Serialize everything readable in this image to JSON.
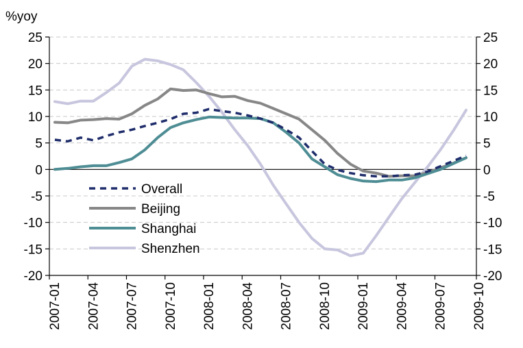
{
  "chart_data": {
    "type": "line",
    "ylabel": "%yoy",
    "ylim": [
      -20,
      25
    ],
    "yticks": [
      -20,
      -15,
      -10,
      -5,
      0,
      5,
      10,
      15,
      20,
      25
    ],
    "y_axis_right": true,
    "grid": "horizontal dashed",
    "legend_position": "lower-left inside",
    "x_tick_labels": [
      "2007-01",
      "2007-04",
      "2007-07",
      "2007-10",
      "2008-01",
      "2008-04",
      "2008-07",
      "2008-10",
      "2009-01",
      "2009-04",
      "2009-07",
      "2009-10"
    ],
    "x": [
      "2007-01",
      "2007-02",
      "2007-03",
      "2007-04",
      "2007-05",
      "2007-06",
      "2007-07",
      "2007-08",
      "2007-09",
      "2007-10",
      "2007-11",
      "2007-12",
      "2008-01",
      "2008-02",
      "2008-03",
      "2008-04",
      "2008-05",
      "2008-06",
      "2008-07",
      "2008-08",
      "2008-09",
      "2008-10",
      "2008-11",
      "2008-12",
      "2009-01",
      "2009-02",
      "2009-03",
      "2009-04",
      "2009-05",
      "2009-06",
      "2009-07",
      "2009-08",
      "2009-09"
    ],
    "series": [
      {
        "name": "Overall",
        "color": "#1f2d6b",
        "dash": "dashed",
        "values": [
          5.6,
          5.3,
          6.0,
          5.5,
          6.3,
          7.0,
          7.5,
          8.2,
          8.8,
          9.5,
          10.5,
          10.7,
          11.4,
          11.0,
          10.7,
          10.2,
          9.6,
          8.8,
          7.5,
          6.0,
          3.5,
          1.0,
          -0.1,
          -0.7,
          -1.1,
          -1.3,
          -1.3,
          -1.1,
          -1.0,
          -0.4,
          0.6,
          1.6,
          2.6
        ]
      },
      {
        "name": "Beijing",
        "color": "#878787",
        "dash": "solid",
        "values": [
          8.9,
          8.8,
          9.3,
          9.4,
          9.6,
          9.5,
          10.5,
          12.1,
          13.3,
          15.2,
          14.9,
          15.0,
          14.3,
          13.7,
          13.8,
          13.0,
          12.5,
          11.5,
          10.5,
          9.5,
          7.5,
          5.5,
          3.0,
          1.0,
          -0.3,
          -0.7,
          -1.3,
          -1.2,
          -1.2,
          -0.6,
          0.3,
          1.2,
          2.2
        ]
      },
      {
        "name": "Shanghai",
        "color": "#4e8d94",
        "dash": "solid",
        "values": [
          0.0,
          0.2,
          0.5,
          0.7,
          0.7,
          1.3,
          2.0,
          3.7,
          6.0,
          7.9,
          8.8,
          9.4,
          9.9,
          9.8,
          9.7,
          9.7,
          9.6,
          8.8,
          7.0,
          5.0,
          2.0,
          0.5,
          -1.0,
          -1.7,
          -2.2,
          -2.3,
          -2.0,
          -2.0,
          -1.6,
          -0.8,
          0.0,
          1.1,
          2.2
        ]
      },
      {
        "name": "Shenzhen",
        "color": "#c7c6de",
        "dash": "solid",
        "values": [
          12.8,
          12.4,
          12.9,
          12.9,
          14.5,
          16.3,
          19.5,
          20.8,
          20.5,
          19.8,
          18.8,
          16.4,
          13.8,
          10.8,
          7.5,
          4.5,
          1.0,
          -3.0,
          -6.5,
          -10.0,
          -13.0,
          -15.0,
          -15.2,
          -16.3,
          -15.8,
          -12.5,
          -9.0,
          -5.5,
          -2.5,
          0.5,
          3.7,
          7.3,
          11.2
        ]
      }
    ]
  }
}
